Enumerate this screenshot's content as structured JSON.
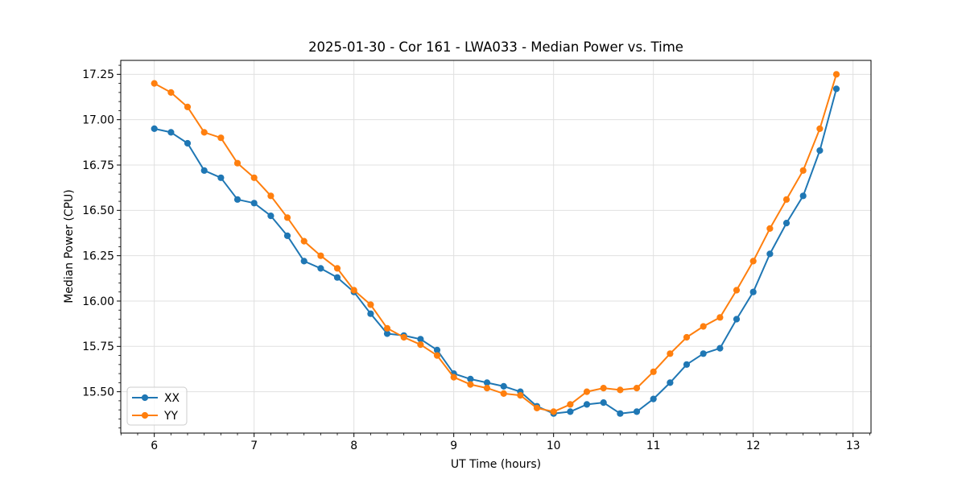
{
  "figure": {
    "background": "#ffffff",
    "spine_color": "#000000",
    "grid_color": "#e0e0e0"
  },
  "chart_data": {
    "type": "line",
    "title": "2025-01-30 - Cor 161 - LWA033 - Median Power vs. Time",
    "xlabel": "UT Time (hours)",
    "ylabel": "Median Power (CPU)",
    "xlim": [
      5.664,
      13.18
    ],
    "ylim": [
      15.272,
      17.327
    ],
    "xticks": [
      6,
      7,
      8,
      9,
      10,
      11,
      12,
      13
    ],
    "xtick_labels": [
      "6",
      "7",
      "8",
      "9",
      "10",
      "11",
      "12",
      "13"
    ],
    "yticks": [
      15.5,
      15.75,
      16.0,
      16.25,
      16.5,
      16.75,
      17.0,
      17.25
    ],
    "ytick_labels": [
      "15.50",
      "15.75",
      "16.00",
      "16.25",
      "16.50",
      "16.75",
      "17.00",
      "17.25"
    ],
    "grid": true,
    "minor_ticks": true,
    "legend_position": "lower-left",
    "x": [
      6.0,
      6.167,
      6.333,
      6.5,
      6.667,
      6.833,
      7.0,
      7.167,
      7.333,
      7.5,
      7.667,
      7.833,
      8.0,
      8.167,
      8.333,
      8.5,
      8.667,
      8.833,
      9.0,
      9.167,
      9.333,
      9.5,
      9.667,
      9.833,
      10.0,
      10.167,
      10.333,
      10.5,
      10.667,
      10.833,
      11.0,
      11.167,
      11.333,
      11.5,
      11.667,
      11.833,
      12.0,
      12.167,
      12.333,
      12.5,
      12.667,
      12.833
    ],
    "series": [
      {
        "name": "XX",
        "color": "#1f77b4",
        "values": [
          16.95,
          16.93,
          16.87,
          16.72,
          16.68,
          16.56,
          16.54,
          16.47,
          16.36,
          16.22,
          16.18,
          16.13,
          16.05,
          15.93,
          15.82,
          15.81,
          15.79,
          15.73,
          15.6,
          15.57,
          15.55,
          15.53,
          15.5,
          15.42,
          15.38,
          15.39,
          15.43,
          15.44,
          15.38,
          15.39,
          15.46,
          15.55,
          15.65,
          15.71,
          15.74,
          15.9,
          16.05,
          16.26,
          16.43,
          16.58,
          16.83,
          17.17
        ]
      },
      {
        "name": "YY",
        "color": "#ff7f0e",
        "values": [
          17.2,
          17.15,
          17.07,
          16.93,
          16.9,
          16.76,
          16.68,
          16.58,
          16.46,
          16.33,
          16.25,
          16.18,
          16.06,
          15.98,
          15.85,
          15.8,
          15.76,
          15.7,
          15.58,
          15.54,
          15.52,
          15.49,
          15.48,
          15.41,
          15.39,
          15.43,
          15.5,
          15.52,
          15.51,
          15.52,
          15.61,
          15.71,
          15.8,
          15.86,
          15.91,
          16.06,
          16.22,
          16.4,
          16.56,
          16.72,
          16.95,
          17.25
        ]
      }
    ]
  }
}
